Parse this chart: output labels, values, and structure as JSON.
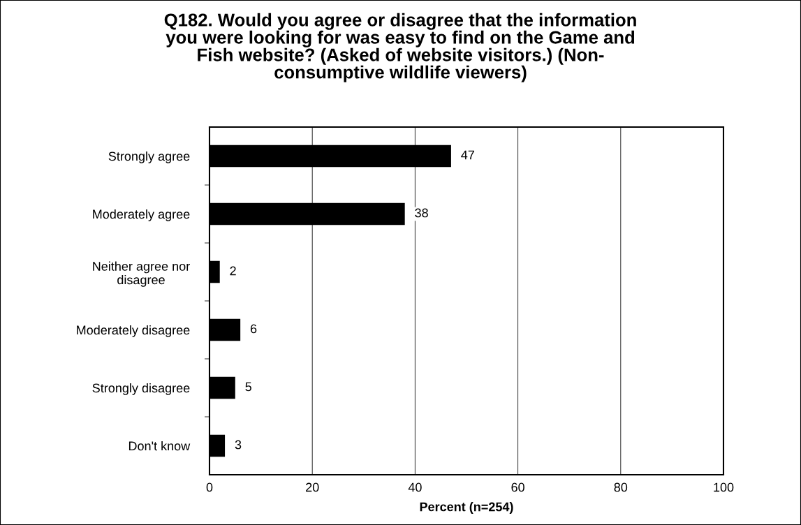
{
  "chart_data": {
    "type": "bar",
    "orientation": "horizontal",
    "title": "Q182. Would you agree or disagree that the information\nyou were looking for was easy to find on the Game and\nFish website? (Asked of website visitors.) (Non-\nconsumptive wildlife viewers)",
    "xlabel": "Percent (n=254)",
    "categories": [
      "Strongly agree",
      "Moderately agree",
      "Neither agree nor\ndisagree",
      "Moderately disagree",
      "Strongly disagree",
      "Don't know"
    ],
    "values": [
      47,
      38,
      2,
      6,
      5,
      3
    ],
    "color": "#000000",
    "data_labels": true,
    "xlim": [
      0,
      100
    ],
    "xticks": [
      0,
      20,
      40,
      60,
      80,
      100
    ],
    "grid": "x",
    "legend": false
  }
}
